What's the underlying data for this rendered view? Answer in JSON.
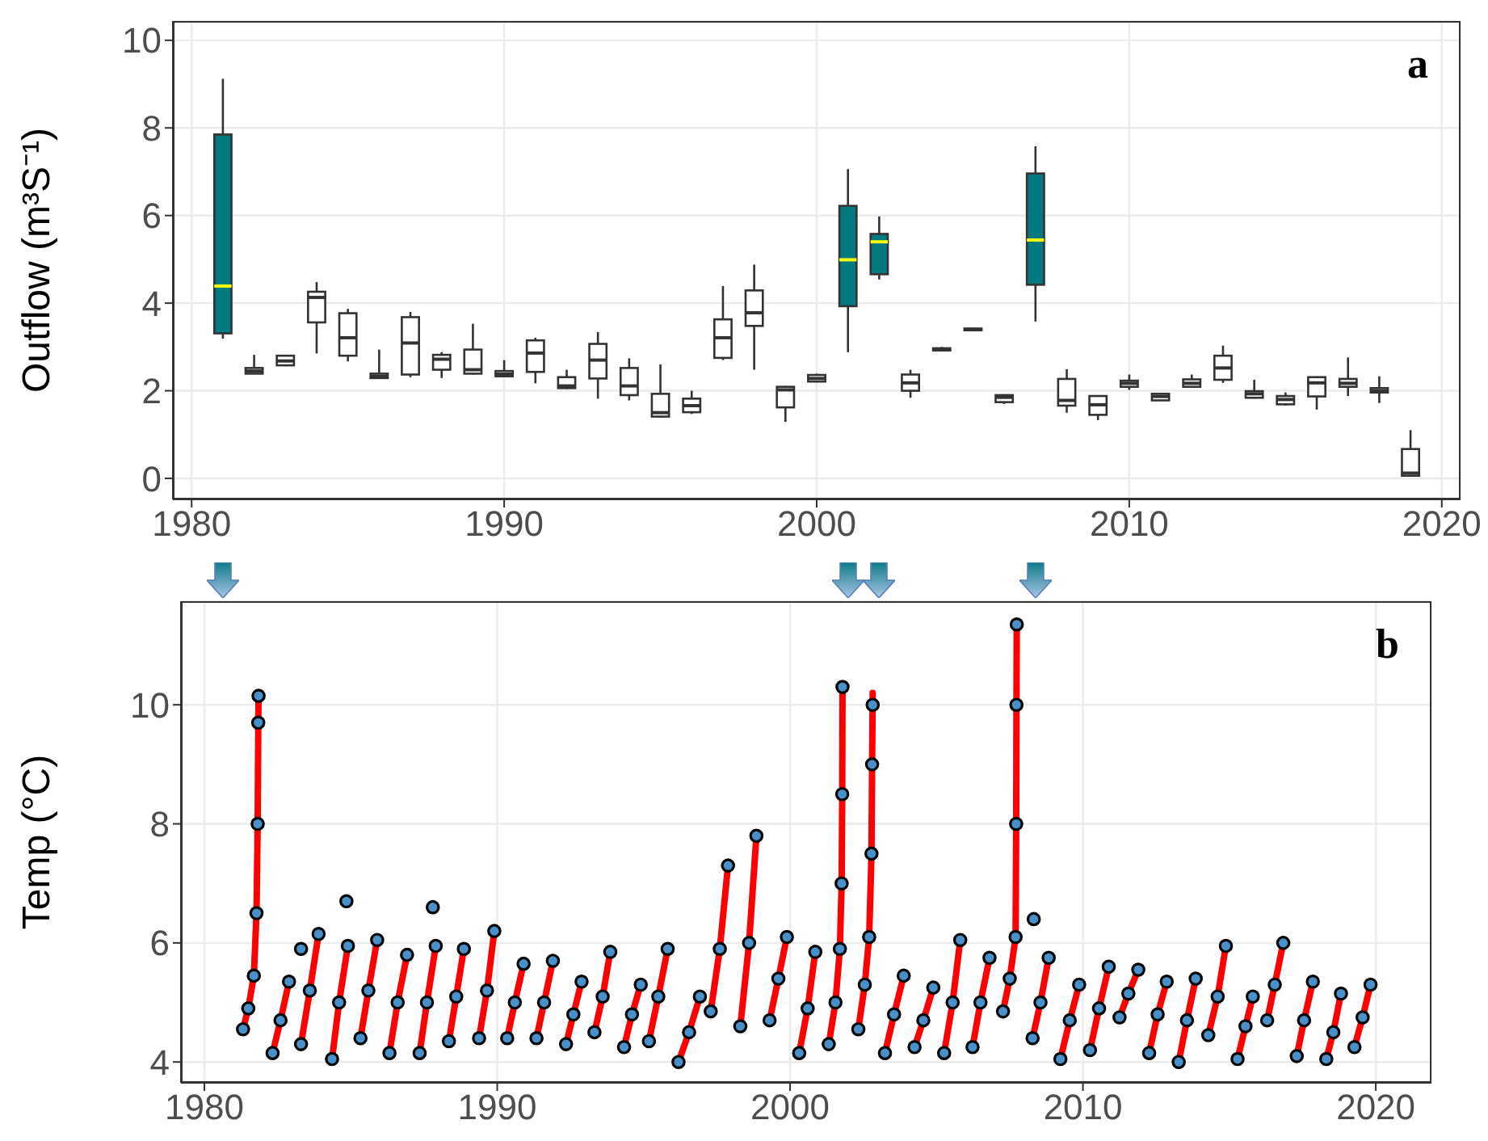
{
  "chart_data": [
    {
      "type": "box",
      "ylabel": "Outflow (m³S⁻¹)",
      "annotations": [
        "a"
      ],
      "xlim": [
        1979.4,
        2020.6
      ],
      "xticks": [
        1980,
        1990,
        2000,
        2010,
        2020
      ],
      "ylim": [
        -0.48,
        10.44
      ],
      "yticks": [
        0,
        2,
        4,
        6,
        8,
        10
      ],
      "grid": true,
      "series": [
        {
          "color": "#00797f",
          "x": [
            1981,
            2001,
            2002,
            2007
          ],
          "boxes": [
            {
              "low": 3.19,
              "q1": 3.31,
              "median": 4.39,
              "q3": 7.85,
              "high": 9.12
            },
            {
              "low": 2.88,
              "q1": 3.93,
              "median": 4.99,
              "q3": 6.22,
              "high": 7.06
            },
            {
              "low": 4.54,
              "q1": 4.66,
              "median": 5.4,
              "q3": 5.58,
              "high": 5.98
            },
            {
              "low": 3.58,
              "q1": 4.42,
              "median": 5.44,
              "q3": 6.96,
              "high": 7.58
            }
          ]
        },
        {
          "color": "#ffffff",
          "x": [
            1982,
            1983,
            1984,
            1985,
            1986,
            1987,
            1988,
            1989,
            1990,
            1991,
            1992,
            1993,
            1994,
            1995,
            1996,
            1997,
            1998,
            1999,
            2000,
            2003,
            2004,
            2005,
            2006,
            2008,
            2009,
            2010,
            2011,
            2012,
            2013,
            2014,
            2015,
            2016,
            2017,
            2018,
            2019
          ],
          "boxes": [
            {
              "low": 2.39,
              "q1": 2.39,
              "median": 2.45,
              "q3": 2.52,
              "high": 2.82
            },
            {
              "low": 2.56,
              "q1": 2.58,
              "median": 2.68,
              "q3": 2.8,
              "high": 2.82
            },
            {
              "low": 2.85,
              "q1": 3.56,
              "median": 4.13,
              "q3": 4.26,
              "high": 4.48
            },
            {
              "low": 2.67,
              "q1": 2.8,
              "median": 3.21,
              "q3": 3.77,
              "high": 3.87
            },
            {
              "low": 2.29,
              "q1": 2.29,
              "median": 2.33,
              "q3": 2.39,
              "high": 2.94
            },
            {
              "low": 2.31,
              "q1": 2.37,
              "median": 3.09,
              "q3": 3.68,
              "high": 3.8
            },
            {
              "low": 2.29,
              "q1": 2.48,
              "median": 2.72,
              "q3": 2.82,
              "high": 2.88
            },
            {
              "low": 2.37,
              "q1": 2.39,
              "median": 2.48,
              "q3": 2.94,
              "high": 3.53
            },
            {
              "low": 2.31,
              "q1": 2.33,
              "median": 2.38,
              "q3": 2.45,
              "high": 2.7
            },
            {
              "low": 2.17,
              "q1": 2.43,
              "median": 2.86,
              "q3": 3.15,
              "high": 3.21
            },
            {
              "low": 2.04,
              "q1": 2.06,
              "median": 2.11,
              "q3": 2.31,
              "high": 2.48
            },
            {
              "low": 1.82,
              "q1": 2.28,
              "median": 2.7,
              "q3": 3.07,
              "high": 3.34
            },
            {
              "low": 1.78,
              "q1": 1.9,
              "median": 2.11,
              "q3": 2.52,
              "high": 2.74
            },
            {
              "low": 1.39,
              "q1": 1.41,
              "median": 1.5,
              "q3": 1.93,
              "high": 2.6
            },
            {
              "low": 1.47,
              "q1": 1.51,
              "median": 1.66,
              "q3": 1.82,
              "high": 2.0
            },
            {
              "low": 2.7,
              "q1": 2.75,
              "median": 3.21,
              "q3": 3.63,
              "high": 4.39
            },
            {
              "low": 2.48,
              "q1": 3.48,
              "median": 3.78,
              "q3": 4.29,
              "high": 4.88
            },
            {
              "low": 1.29,
              "q1": 1.62,
              "median": 2.02,
              "q3": 2.09,
              "high": 2.11
            },
            {
              "low": 2.19,
              "q1": 2.21,
              "median": 2.28,
              "q3": 2.36,
              "high": 2.39
            },
            {
              "low": 1.84,
              "q1": 2.0,
              "median": 2.18,
              "q3": 2.37,
              "high": 2.48
            },
            {
              "low": 2.92,
              "q1": 2.92,
              "median": 2.95,
              "q3": 2.97,
              "high": 3.0
            },
            {
              "low": 3.38,
              "q1": 3.38,
              "median": 3.4,
              "q3": 3.42,
              "high": 3.42
            },
            {
              "low": 1.7,
              "q1": 1.74,
              "median": 1.85,
              "q3": 1.9,
              "high": 1.92
            },
            {
              "low": 1.5,
              "q1": 1.66,
              "median": 1.78,
              "q3": 2.27,
              "high": 2.49
            },
            {
              "low": 1.33,
              "q1": 1.45,
              "median": 1.68,
              "q3": 1.88,
              "high": 1.9
            },
            {
              "low": 2.02,
              "q1": 2.09,
              "median": 2.17,
              "q3": 2.23,
              "high": 2.37
            },
            {
              "low": 1.77,
              "q1": 1.78,
              "median": 1.87,
              "q3": 1.93,
              "high": 1.94
            },
            {
              "low": 2.07,
              "q1": 2.09,
              "median": 2.17,
              "q3": 2.26,
              "high": 2.37
            },
            {
              "low": 2.18,
              "q1": 2.25,
              "median": 2.52,
              "q3": 2.8,
              "high": 3.03
            },
            {
              "low": 1.82,
              "q1": 1.84,
              "median": 1.93,
              "q3": 1.99,
              "high": 2.25
            },
            {
              "low": 1.66,
              "q1": 1.69,
              "median": 1.8,
              "q3": 1.88,
              "high": 1.96
            },
            {
              "low": 1.57,
              "q1": 1.87,
              "median": 2.18,
              "q3": 2.31,
              "high": 2.33
            },
            {
              "low": 1.88,
              "q1": 2.09,
              "median": 2.17,
              "q3": 2.27,
              "high": 2.76
            },
            {
              "low": 1.72,
              "q1": 1.96,
              "median": 2.0,
              "q3": 2.06,
              "high": 2.33
            },
            {
              "low": 0.06,
              "q1": 0.06,
              "median": 0.12,
              "q3": 0.67,
              "high": 1.1
            }
          ]
        }
      ]
    },
    {
      "type": "scatter",
      "ylabel": "Temp (°C)",
      "annotations": [
        "b"
      ],
      "xlim": [
        1979.2,
        2021.9
      ],
      "xticks": [
        1980,
        1990,
        2000,
        2010,
        2020
      ],
      "ylim": [
        3.65,
        11.74
      ],
      "yticks": [
        4,
        6,
        8,
        10
      ],
      "grid": true,
      "series": [
        {
          "type": "line",
          "color": "#ff0000",
          "x": [
            1981.32,
            1981.5,
            1981.69,
            1981.78,
            1981.82,
            1981.84,
            1981.85,
            1982,
            1982.33,
            1982.6,
            1982.89,
            1983,
            1983.3,
            1983.6,
            1983.9,
            1984,
            1984.36,
            1984.6,
            1984.9,
            1985,
            1985.33,
            1985.6,
            1985.9,
            1986,
            1986.32,
            1986.6,
            1986.92,
            1987,
            1987.35,
            1987.6,
            1987.9,
            1988,
            1988.35,
            1988.6,
            1988.86,
            1989,
            1989.38,
            1989.65,
            1989.9,
            1990,
            1990.34,
            1990.6,
            1990.9,
            1991,
            1991.34,
            1991.6,
            1991.9,
            1992,
            1992.35,
            1992.6,
            1992.88,
            1993,
            1993.32,
            1993.6,
            1993.86,
            1994,
            1994.33,
            1994.6,
            1994.9,
            1995,
            1995.18,
            1995.5,
            1995.82,
            1996,
            1996.19,
            1996.55,
            1996.92,
            1997,
            1997.29,
            1997.6,
            1997.88,
            1998,
            1998.3,
            1998.6,
            1998.85,
            1999,
            1999.3,
            1999.6,
            1999.89,
            2000,
            2000.31,
            2000.6,
            2000.86,
            2001,
            2001.32,
            2001.55,
            2001.7,
            2001.76,
            2001.78,
            2001.79,
            2002,
            2002.33,
            2002.55,
            2002.7,
            2002.78,
            2002.8,
            2002.82,
            2003,
            2003.24,
            2003.55,
            2003.88,
            2004,
            2004.25,
            2004.55,
            2004.89,
            2005,
            2005.26,
            2005.55,
            2005.81,
            2006,
            2006.23,
            2006.5,
            2006.81,
            2007,
            2007.27,
            2007.5,
            2007.7,
            2007.72,
            2007.73,
            2007.74,
            2008,
            2008.28,
            2008.55,
            2008.83,
            2009,
            2009.23,
            2009.55,
            2009.87,
            2010,
            2010.24,
            2010.55,
            2010.88,
            2011,
            2011.25,
            2011.55,
            2011.89,
            2012,
            2012.26,
            2012.55,
            2012.86,
            2013,
            2013.27,
            2013.55,
            2013.85,
            2014,
            2014.28,
            2014.6,
            2014.88,
            2015,
            2015.28,
            2015.55,
            2015.8,
            2016,
            2016.29,
            2016.55,
            2016.84,
            2017,
            2017.3,
            2017.55,
            2017.85,
            2018,
            2018.31,
            2018.55,
            2018.81,
            2019,
            2019.27,
            2019.55,
            2019.82
          ],
          "values": [
            4.55,
            4.9,
            5.45,
            6.5,
            8.0,
            9.7,
            10.15,
            null,
            4.15,
            4.7,
            5.35,
            null,
            4.3,
            5.2,
            6.15,
            null,
            4.05,
            5.0,
            5.95,
            null,
            4.4,
            5.2,
            6.05,
            null,
            4.15,
            5.0,
            5.8,
            null,
            4.15,
            5.0,
            5.95,
            null,
            4.35,
            5.1,
            5.9,
            null,
            4.4,
            5.2,
            6.2,
            null,
            4.4,
            5.0,
            5.65,
            null,
            4.4,
            5.0,
            5.7,
            null,
            4.3,
            4.8,
            5.35,
            null,
            4.5,
            5.1,
            5.85,
            null,
            4.25,
            4.8,
            5.3,
            null,
            4.35,
            5.1,
            5.9,
            null,
            4.0,
            4.5,
            5.1,
            null,
            4.85,
            5.9,
            7.3,
            null,
            4.6,
            6.0,
            7.8,
            null,
            4.7,
            5.4,
            6.1,
            null,
            4.15,
            4.9,
            5.85,
            null,
            4.3,
            5.0,
            5.9,
            7.0,
            8.5,
            10.3,
            null,
            4.55,
            5.3,
            6.1,
            7.5,
            9.0,
            10.2,
            null,
            4.15,
            4.8,
            5.45,
            null,
            4.25,
            4.7,
            5.25,
            null,
            4.15,
            5.0,
            6.05,
            null,
            4.25,
            5.0,
            5.75,
            null,
            4.85,
            5.4,
            6.1,
            8.0,
            10.0,
            11.35,
            null,
            4.4,
            5.0,
            5.75,
            null,
            4.05,
            4.7,
            5.3,
            null,
            4.2,
            4.9,
            5.6,
            null,
            4.75,
            5.15,
            5.55,
            null,
            4.15,
            4.8,
            5.35,
            null,
            4.0,
            4.7,
            5.4,
            null,
            4.45,
            5.1,
            5.95,
            null,
            4.05,
            4.6,
            5.1,
            null,
            4.7,
            5.3,
            6.0,
            null,
            4.1,
            4.7,
            5.35,
            null,
            4.05,
            4.5,
            5.15,
            null,
            4.25,
            4.75,
            5.3
          ]
        },
        {
          "color": "#4a90c8",
          "marker": "circle",
          "x": [
            1981.32,
            1981.5,
            1981.69,
            1981.78,
            1981.82,
            1981.84,
            1981.85,
            1982.33,
            1982.6,
            1982.89,
            1983.3,
            1983.3,
            1983.6,
            1983.9,
            1984.36,
            1984.6,
            1984.85,
            1984.9,
            1985.33,
            1985.6,
            1985.9,
            1986.32,
            1986.6,
            1986.92,
            1987.35,
            1987.6,
            1987.8,
            1987.9,
            1988.35,
            1988.6,
            1988.86,
            1989.38,
            1989.65,
            1989.9,
            1990.34,
            1990.6,
            1990.9,
            1991.34,
            1991.6,
            1991.9,
            1992.35,
            1992.6,
            1992.88,
            1993.32,
            1993.6,
            1993.86,
            1994.33,
            1994.6,
            1994.9,
            1995.18,
            1995.5,
            1995.82,
            1996.19,
            1996.55,
            1996.92,
            1997.29,
            1997.6,
            1997.88,
            1998.3,
            1998.6,
            1998.85,
            1999.3,
            1999.6,
            1999.89,
            2000.31,
            2000.6,
            2000.86,
            2001.32,
            2001.55,
            2001.7,
            2001.76,
            2001.78,
            2001.79,
            2002.33,
            2002.55,
            2002.7,
            2002.78,
            2002.8,
            2002.82,
            2003.24,
            2003.55,
            2003.88,
            2004.25,
            2004.55,
            2004.89,
            2005.26,
            2005.55,
            2005.81,
            2006.23,
            2006.5,
            2006.81,
            2007.27,
            2007.5,
            2007.7,
            2007.72,
            2007.73,
            2007.74,
            2008.28,
            2008.32,
            2008.55,
            2008.83,
            2009.23,
            2009.55,
            2009.87,
            2010.24,
            2010.55,
            2010.88,
            2011.25,
            2011.55,
            2011.89,
            2012.26,
            2012.55,
            2012.86,
            2013.27,
            2013.55,
            2013.85,
            2014.28,
            2014.6,
            2014.88,
            2015.28,
            2015.55,
            2015.8,
            2016.29,
            2016.55,
            2016.84,
            2017.3,
            2017.55,
            2017.85,
            2018.31,
            2018.55,
            2018.81,
            2019.27,
            2019.55,
            2019.82
          ],
          "values": [
            4.55,
            4.9,
            5.45,
            6.5,
            8.0,
            9.7,
            10.15,
            4.15,
            4.7,
            5.35,
            4.3,
            5.9,
            5.2,
            6.15,
            4.05,
            5.0,
            6.7,
            5.95,
            4.4,
            5.2,
            6.05,
            4.15,
            5.0,
            5.8,
            4.15,
            5.0,
            6.6,
            5.95,
            4.35,
            5.1,
            5.9,
            4.4,
            5.2,
            6.2,
            4.4,
            5.0,
            5.65,
            4.4,
            5.0,
            5.7,
            4.3,
            4.8,
            5.35,
            4.5,
            5.1,
            5.85,
            4.25,
            4.8,
            5.3,
            4.35,
            5.1,
            5.9,
            4.0,
            4.5,
            5.1,
            4.85,
            5.9,
            7.3,
            4.6,
            6.0,
            7.8,
            4.7,
            5.4,
            6.1,
            4.15,
            4.9,
            5.85,
            4.3,
            5.0,
            5.9,
            7.0,
            8.5,
            10.3,
            4.55,
            5.3,
            6.1,
            7.5,
            9.0,
            10.0,
            4.15,
            4.8,
            5.45,
            4.25,
            4.7,
            5.25,
            4.15,
            5.0,
            6.05,
            4.25,
            5.0,
            5.75,
            4.85,
            5.4,
            6.1,
            8.0,
            10.0,
            11.35,
            4.4,
            6.4,
            5.0,
            5.75,
            4.05,
            4.7,
            5.3,
            4.2,
            4.9,
            5.6,
            4.75,
            5.15,
            5.55,
            4.15,
            4.8,
            5.35,
            4.0,
            4.7,
            5.4,
            4.45,
            5.1,
            5.95,
            4.05,
            4.6,
            5.1,
            4.7,
            5.3,
            6.0,
            4.1,
            4.7,
            5.35,
            4.05,
            4.5,
            5.15,
            4.25,
            4.75,
            5.3
          ]
        }
      ]
    }
  ]
}
